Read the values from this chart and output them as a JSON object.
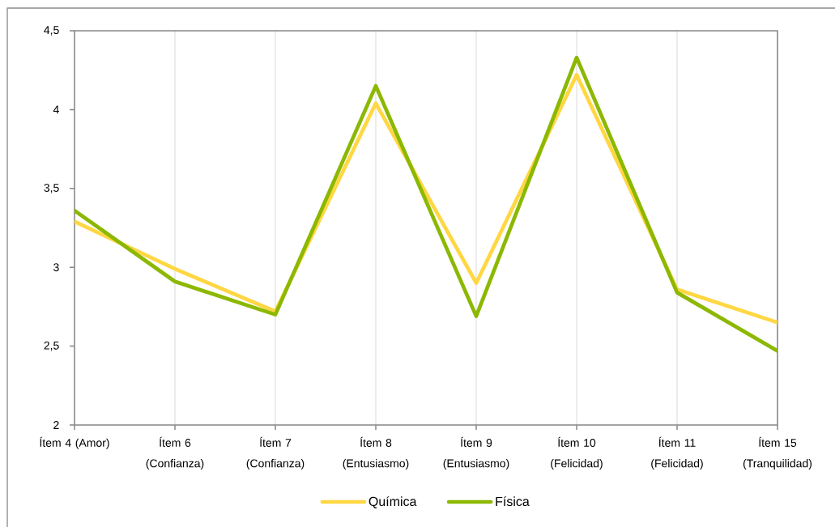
{
  "chart_data": {
    "type": "line",
    "categories": [
      "Ítem 4 (Amor)",
      "Ítem 6 (Confianza)",
      "Ítem 7 (Confianza)",
      "Ítem 8 (Entusiasmo)",
      "Ítem 9 (Entusiasmo)",
      "Ítem 10 (Felicidad)",
      "Ítem 11 (Felicidad)",
      "Ítem 15 (Tranquilidad)"
    ],
    "series": [
      {
        "name": "Química",
        "color": "#ffd743",
        "values": [
          3.29,
          2.99,
          2.72,
          4.04,
          2.9,
          4.22,
          2.86,
          2.65
        ]
      },
      {
        "name": "Física",
        "color": "#8cb800",
        "values": [
          3.36,
          2.91,
          2.7,
          4.15,
          2.69,
          4.33,
          2.84,
          2.47
        ]
      }
    ],
    "ylim": [
      2,
      4.5
    ],
    "yticks": [
      2,
      {
        "value": 2.5,
        "label": "2,5"
      },
      3,
      {
        "value": 3.5,
        "label": "3,5"
      },
      4,
      {
        "value": 4.5,
        "label": "4,5"
      }
    ],
    "grid": "x",
    "legend": "bottom",
    "marker": "none",
    "line_style": "solid"
  }
}
